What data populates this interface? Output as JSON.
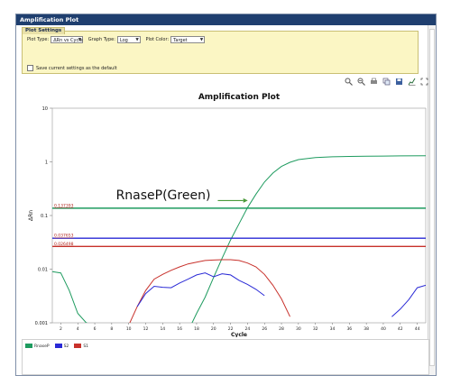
{
  "window": {
    "title": "Amplification Plot"
  },
  "settings": {
    "tab_label": "Plot Settings",
    "plot_type_label": "Plot Type:",
    "plot_type_value": "ΔRn vs Cycle",
    "graph_type_label": "Graph Type:",
    "graph_type_value": "Log",
    "plot_color_label": "Plot Color:",
    "plot_color_value": "Target",
    "save_default_label": "Save current settings as the default"
  },
  "toolbar": {
    "icons": [
      "zoom-in-icon",
      "zoom-out-icon",
      "print-icon",
      "copy-icon",
      "save-image-icon",
      "chart-options-icon",
      "expand-icon"
    ]
  },
  "colors": {
    "rnasep": "#1e9b5f",
    "s2": "#2a2ad6",
    "s1": "#c8312b",
    "title_bar": "#1f3f6f",
    "settings_bg": "#fbf6c4"
  },
  "legend": {
    "items": [
      {
        "label": "RnaseP",
        "color": "#1e9b5f"
      },
      {
        "label": "S2",
        "color": "#2a2ad6"
      },
      {
        "label": "S1",
        "color": "#c8312b"
      }
    ]
  },
  "chart_data": {
    "type": "line",
    "title": "Amplification Plot",
    "xlabel": "Cycle",
    "ylabel": "ΔRn",
    "y_scale": "log",
    "xlim": [
      1,
      45
    ],
    "ylim": [
      0.001,
      10
    ],
    "x_ticks": [
      "2",
      "4",
      "6",
      "8",
      "10",
      "12",
      "14",
      "16",
      "18",
      "20",
      "22",
      "24",
      "26",
      "28",
      "30",
      "32",
      "34",
      "36",
      "38",
      "40",
      "42",
      "44"
    ],
    "y_ticks": [
      "0.001",
      "0.01",
      "0.1",
      "1",
      "10"
    ],
    "annotation": "RnaseP(Green)",
    "thresholds": [
      {
        "series": "RnaseP",
        "label": "0.137393",
        "value": 0.137
      },
      {
        "series": "S2",
        "label": "0.037653",
        "value": 0.0377
      },
      {
        "series": "S1",
        "label": "0.026498",
        "value": 0.0265
      }
    ],
    "series": [
      {
        "name": "RnaseP",
        "x": [
          1,
          2,
          3,
          4,
          5,
          6
        ],
        "y": [
          0.009,
          0.0085,
          0.004,
          0.0015,
          0.001,
          0.0009
        ]
      },
      {
        "name": "RnaseP",
        "x": [
          17,
          18,
          19,
          20,
          21,
          22,
          23,
          24,
          25,
          26,
          27,
          28,
          29,
          30,
          32,
          34,
          36,
          38,
          40,
          42,
          45
        ],
        "y": [
          0.0007,
          0.0015,
          0.003,
          0.007,
          0.016,
          0.035,
          0.07,
          0.14,
          0.25,
          0.42,
          0.62,
          0.82,
          0.98,
          1.1,
          1.2,
          1.24,
          1.26,
          1.27,
          1.28,
          1.29,
          1.3
        ]
      },
      {
        "name": "S1",
        "x": [
          10,
          11,
          12,
          13,
          14,
          15,
          16,
          17,
          18,
          19,
          20,
          21,
          22,
          23,
          24,
          25,
          26,
          27,
          28,
          29
        ],
        "y": [
          0.0009,
          0.002,
          0.004,
          0.0065,
          0.008,
          0.0095,
          0.011,
          0.0125,
          0.0135,
          0.0145,
          0.0148,
          0.015,
          0.015,
          0.0145,
          0.013,
          0.011,
          0.008,
          0.005,
          0.0028,
          0.0013
        ]
      },
      {
        "name": "S2",
        "x": [
          11,
          12,
          13,
          14,
          15,
          16,
          17,
          18,
          19,
          20,
          21,
          22,
          23,
          24,
          25,
          26
        ],
        "y": [
          0.002,
          0.0035,
          0.0048,
          0.0046,
          0.0045,
          0.0055,
          0.0065,
          0.0078,
          0.0085,
          0.0072,
          0.0082,
          0.0078,
          0.0062,
          0.0052,
          0.0042,
          0.0032
        ]
      },
      {
        "name": "S2",
        "x": [
          41,
          42,
          43,
          44,
          45
        ],
        "y": [
          0.0013,
          0.0018,
          0.0027,
          0.0045,
          0.005
        ]
      }
    ]
  }
}
